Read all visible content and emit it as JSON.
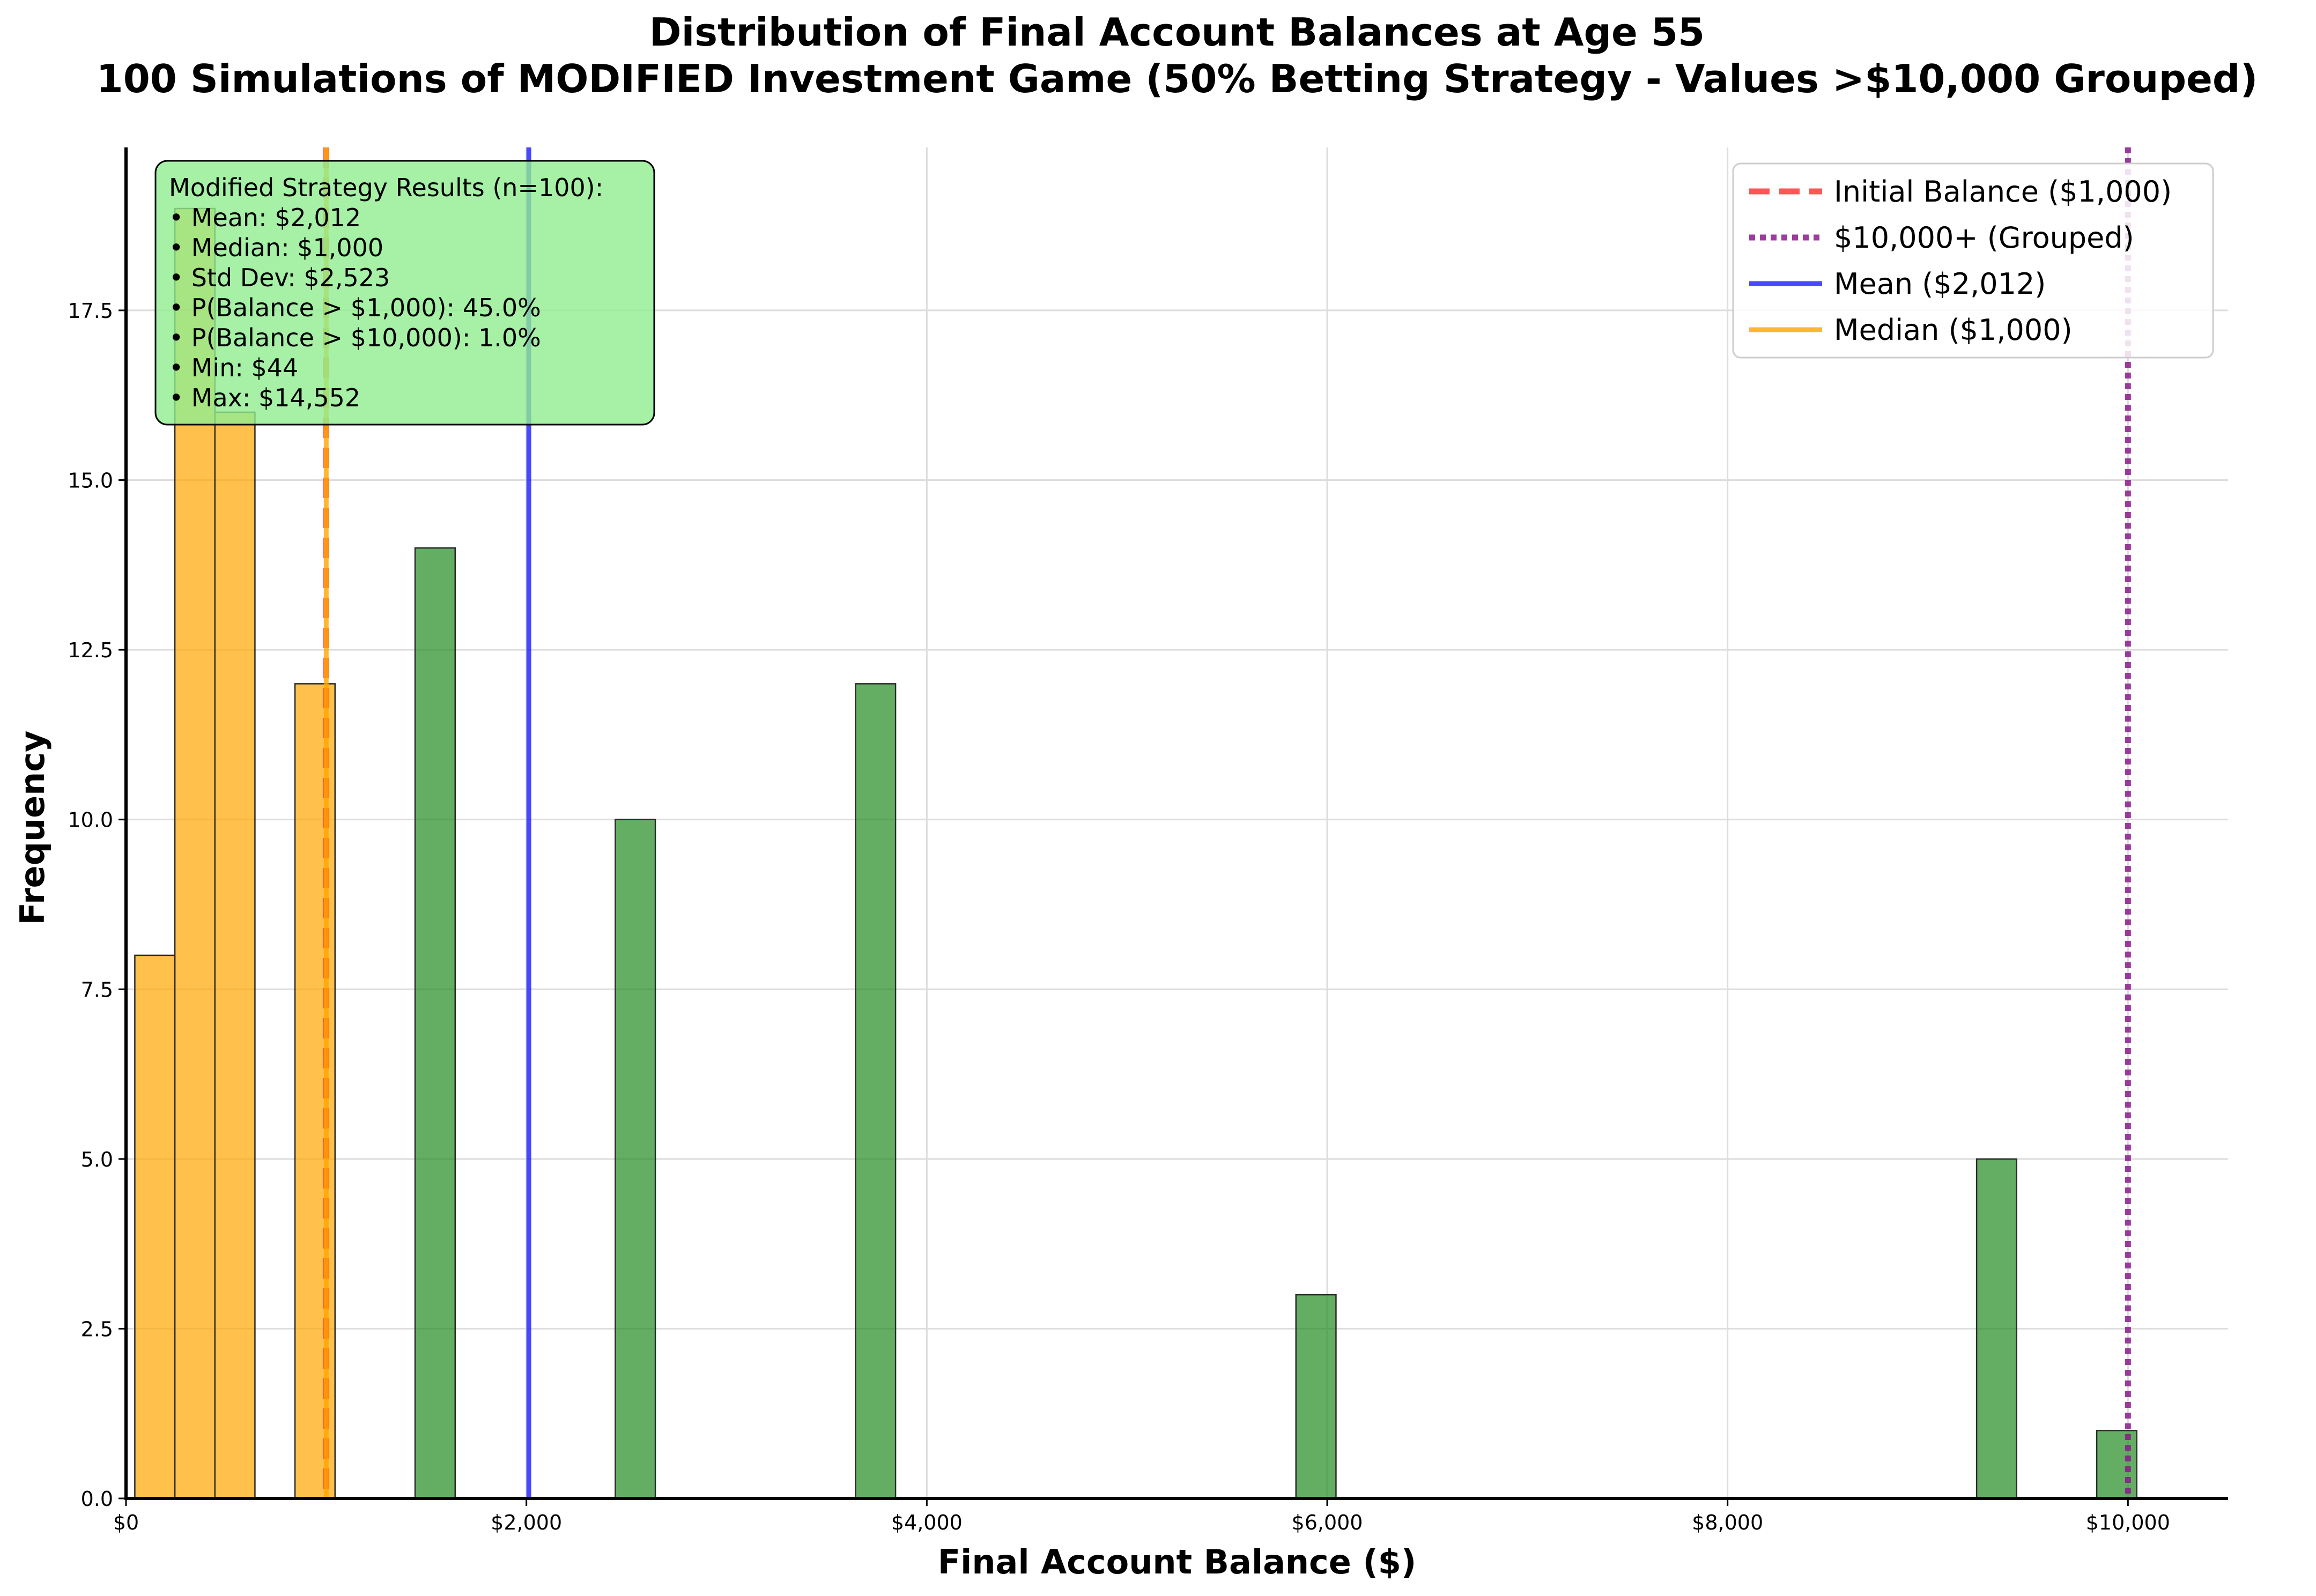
{
  "chart_data": {
    "type": "bar",
    "title": "Distribution of Final Account Balances at Age 55",
    "subtitle": "100 Simulations of MODIFIED Investment Game (50% Betting Strategy - Values >$10,000 Grouped)",
    "xlabel": "Final Account Balance ($)",
    "ylabel": "Frequency",
    "xlim": [
      0,
      10500
    ],
    "ylim": [
      0,
      19.9
    ],
    "grid": true,
    "legend_position": "top-right",
    "bin_width": 200,
    "xticks": [
      {
        "value": 0,
        "label": "$0"
      },
      {
        "value": 2000,
        "label": "$2,000"
      },
      {
        "value": 4000,
        "label": "$4,000"
      },
      {
        "value": 6000,
        "label": "$6,000"
      },
      {
        "value": 8000,
        "label": "$8,000"
      },
      {
        "value": 10000,
        "label": "$10,000"
      }
    ],
    "yticks": [
      {
        "value": 0,
        "label": "0.0"
      },
      {
        "value": 2.5,
        "label": "2.5"
      },
      {
        "value": 5,
        "label": "5.0"
      },
      {
        "value": 7.5,
        "label": "7.5"
      },
      {
        "value": 10,
        "label": "10.0"
      },
      {
        "value": 12.5,
        "label": "12.5"
      },
      {
        "value": 15,
        "label": "15.0"
      },
      {
        "value": 17.5,
        "label": "17.5"
      }
    ],
    "bars": [
      {
        "x0": 44,
        "x1": 244,
        "count": 8,
        "group": "at-or-below-initial"
      },
      {
        "x0": 244,
        "x1": 444,
        "count": 19,
        "group": "at-or-below-initial"
      },
      {
        "x0": 444,
        "x1": 644,
        "count": 16,
        "group": "at-or-below-initial"
      },
      {
        "x0": 844,
        "x1": 1044,
        "count": 12,
        "group": "at-or-below-initial"
      },
      {
        "x0": 1444,
        "x1": 1644,
        "count": 14,
        "group": "above-initial"
      },
      {
        "x0": 2444,
        "x1": 2644,
        "count": 10,
        "group": "above-initial"
      },
      {
        "x0": 3644,
        "x1": 3844,
        "count": 12,
        "group": "above-initial"
      },
      {
        "x0": 5844,
        "x1": 6044,
        "count": 3,
        "group": "above-initial"
      },
      {
        "x0": 9244,
        "x1": 9444,
        "count": 5,
        "group": "above-initial"
      },
      {
        "x0": 9844,
        "x1": 10044,
        "count": 1,
        "group": "above-initial"
      }
    ],
    "reference_lines": [
      {
        "name": "Initial Balance ($1,000)",
        "value": 1000,
        "color": "#ff2a2a",
        "style": "dashed"
      },
      {
        "name": "$10,000+ (Grouped)",
        "value": 10000,
        "color": "#8b1a8b",
        "style": "dotted"
      },
      {
        "name": "Mean ($2,012)",
        "value": 2012,
        "color": "#1a1aff",
        "style": "solid"
      },
      {
        "name": "Median ($1,000)",
        "value": 1000,
        "color": "#ffa500",
        "style": "solid"
      }
    ],
    "colors": {
      "at_or_below_initial": "#ffa500",
      "above_initial": "#228b22",
      "stats_box_bg": "#90ee90"
    },
    "stats_box": {
      "lines": [
        "Modified Strategy Results (n=100):",
        "• Mean: $2,012",
        "• Median: $1,000",
        "• Std Dev: $2,523",
        "• P(Balance > $1,000): 45.0%",
        "• P(Balance > $10,000): 1.0%",
        "• Min: $44",
        "• Max: $14,552"
      ]
    }
  }
}
